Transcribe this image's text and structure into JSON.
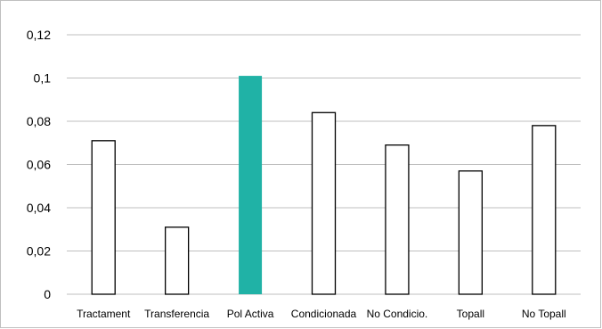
{
  "chart_data": {
    "type": "bar",
    "title": "",
    "xlabel": "",
    "ylabel": "",
    "categories": [
      "Tractament",
      "Transferencia",
      "Pol Activa",
      "Condicionada",
      "No Condicio.",
      "Topall",
      "No Topall"
    ],
    "values": [
      0.071,
      0.031,
      0.101,
      0.084,
      0.069,
      0.057,
      0.078
    ],
    "highlight_index": 2,
    "ylim": [
      0,
      0.12
    ],
    "yticks": [
      0,
      0.02,
      0.04,
      0.06,
      0.08,
      0.1,
      0.12
    ],
    "ytick_labels": [
      "0",
      "0,02",
      "0,04",
      "0,06",
      "0,08",
      "0,1",
      "0,12"
    ],
    "grid": true,
    "legend": "none",
    "colors": {
      "highlight": "#20b2a6",
      "bar_fill": "#ffffff",
      "bar_stroke": "#000000",
      "grid": "#bfbfbf"
    }
  }
}
